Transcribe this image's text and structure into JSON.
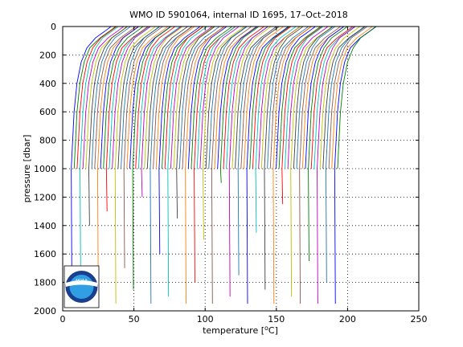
{
  "chart_data": {
    "type": "line",
    "title": "WMO ID 5901064, internal ID 1695, 17–Oct–2018",
    "xlabel": "temperature [°C]",
    "xlabel_prefix": "temperature [",
    "xlabel_unit": "C]",
    "ylabel": "pressure [dbar]",
    "xlim": [
      0,
      250
    ],
    "ylim": [
      2000,
      0
    ],
    "y_reversed": true,
    "grid": true,
    "xticks": [
      "0",
      "50",
      "100",
      "150",
      "200",
      "250"
    ],
    "yticks": [
      "0",
      "200",
      "400",
      "600",
      "800",
      "1000",
      "1200",
      "1400",
      "1600",
      "1800",
      "2000"
    ],
    "series_description": "Stacked temperature profiles, each offset to the right of the previous one",
    "profile_count": 92,
    "profile_start_x": 6,
    "profile_end_x": 193,
    "profile_shape": {
      "pressure": [
        0,
        30,
        80,
        150,
        250,
        400,
        600,
        800,
        1000
      ],
      "offset": [
        28,
        24,
        17,
        11,
        7,
        4,
        2,
        1,
        0
      ]
    },
    "deep_profiles": {
      "max_pressure": [
        1950,
        1850,
        1400,
        1900,
        1300,
        1950,
        1700,
        1850,
        1200,
        1950,
        1600,
        1900,
        1350,
        1950,
        1800,
        1500,
        1950,
        1100,
        1900,
        1750,
        1950,
        1450,
        1850,
        1950,
        1250,
        1900,
        1950,
        1650,
        1950,
        1800,
        1950,
        1550
      ]
    },
    "colors": [
      "#0000ff",
      "#008000",
      "#ff0000",
      "#00bfbf",
      "#bf00bf",
      "#bfbf00",
      "#404040",
      "#1f77b4",
      "#8c564b",
      "#ff7f0e"
    ]
  },
  "logo": {
    "text": "NOAA",
    "colors": {
      "outer": "#1b3f8f",
      "inner": "#2f9ee3",
      "bird": "#ffffff"
    }
  }
}
